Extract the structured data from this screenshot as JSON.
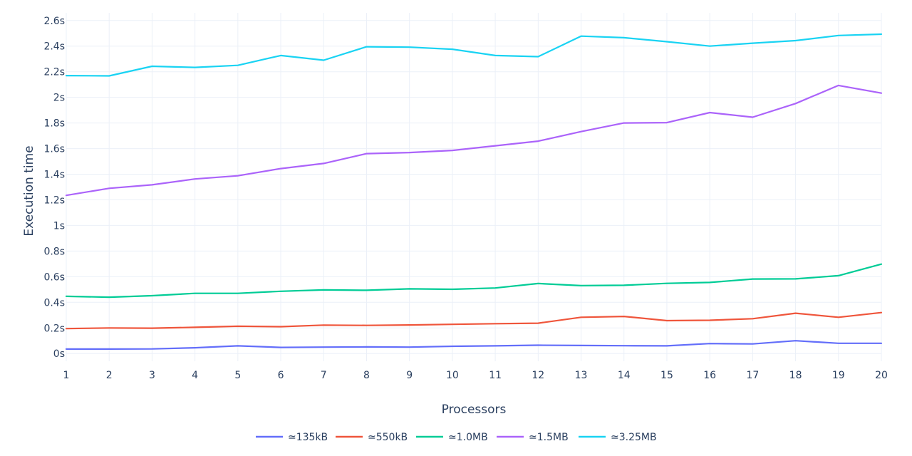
{
  "chart_data": {
    "type": "line",
    "xlabel": "Processors",
    "ylabel": "Execution time",
    "x": [
      1,
      2,
      3,
      4,
      5,
      6,
      7,
      8,
      9,
      10,
      11,
      12,
      13,
      14,
      15,
      16,
      17,
      18,
      19,
      20
    ],
    "xlim": [
      1,
      20
    ],
    "ylim": [
      -0.06,
      2.66
    ],
    "yticks": [
      0,
      0.2,
      0.4,
      0.6,
      0.8,
      1,
      1.2,
      1.4,
      1.6,
      1.8,
      2,
      2.2,
      2.4,
      2.6
    ],
    "ytick_labels": [
      "0s",
      "0.2s",
      "0.4s",
      "0.6s",
      "0.8s",
      "1s",
      "1.2s",
      "1.4s",
      "1.6s",
      "1.8s",
      "2s",
      "2.2s",
      "2.4s",
      "2.6s"
    ],
    "grid": true,
    "legend_position": "bottom-center",
    "series": [
      {
        "name": "≃135kB",
        "color": "#636efa",
        "values": [
          0.035,
          0.035,
          0.036,
          0.045,
          0.06,
          0.048,
          0.05,
          0.052,
          0.05,
          0.057,
          0.06,
          0.065,
          0.063,
          0.061,
          0.06,
          0.078,
          0.075,
          0.1,
          0.08,
          0.08
        ]
      },
      {
        "name": "≃550kB",
        "color": "#ef553b",
        "values": [
          0.195,
          0.2,
          0.198,
          0.205,
          0.213,
          0.21,
          0.222,
          0.22,
          0.223,
          0.228,
          0.233,
          0.237,
          0.283,
          0.29,
          0.257,
          0.26,
          0.272,
          0.315,
          0.283,
          0.32
        ]
      },
      {
        "name": "≃1.0MB",
        "color": "#00cc96",
        "values": [
          0.447,
          0.44,
          0.452,
          0.47,
          0.47,
          0.486,
          0.497,
          0.494,
          0.505,
          0.502,
          0.512,
          0.547,
          0.53,
          0.533,
          0.548,
          0.555,
          0.582,
          0.583,
          0.608,
          0.698
        ]
      },
      {
        "name": "≃1.5MB",
        "color": "#ab63fa",
        "values": [
          1.235,
          1.29,
          1.317,
          1.363,
          1.388,
          1.444,
          1.484,
          1.561,
          1.569,
          1.586,
          1.622,
          1.658,
          1.733,
          1.8,
          1.803,
          1.881,
          1.845,
          1.952,
          2.093,
          2.033
        ]
      },
      {
        "name": "≃3.25MB",
        "color": "#19d3f3",
        "values": [
          2.17,
          2.168,
          2.243,
          2.234,
          2.25,
          2.327,
          2.29,
          2.395,
          2.392,
          2.376,
          2.327,
          2.318,
          2.478,
          2.466,
          2.435,
          2.4,
          2.423,
          2.443,
          2.483,
          2.493
        ]
      }
    ]
  }
}
